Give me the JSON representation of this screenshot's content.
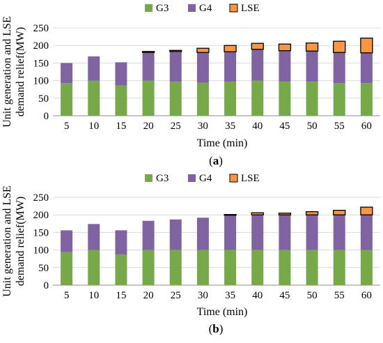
{
  "chart_data": [
    {
      "type": "bar",
      "stacked": true,
      "panel_label": "(a)",
      "panel_letter": "a",
      "xlabel": "Time (min)",
      "ylabel_lines": [
        "Unit generation and LSE",
        "demand relief(MW)"
      ],
      "categories": [
        "5",
        "10",
        "15",
        "20",
        "25",
        "30",
        "35",
        "40",
        "45",
        "50",
        "55",
        "60"
      ],
      "ylim": [
        0,
        250
      ],
      "yticks": [
        "0",
        "50",
        "100",
        "150",
        "200",
        "250"
      ],
      "legend_position": "top-center",
      "series": [
        {
          "name": "G3",
          "color": "#77a84a",
          "values": [
            93,
            100,
            86,
            100,
            97,
            94,
            97,
            100,
            97,
            97,
            93,
            93
          ]
        },
        {
          "name": "G4",
          "color": "#8064a2",
          "values": [
            57,
            69,
            66,
            80,
            86,
            86,
            85,
            89,
            88,
            87,
            87,
            86
          ]
        },
        {
          "name": "LSE",
          "color": "#f79646",
          "values": [
            0,
            0,
            0,
            3,
            3,
            12,
            18,
            17,
            19,
            23,
            32,
            42
          ]
        }
      ]
    },
    {
      "type": "bar",
      "stacked": true,
      "panel_label": "(b)",
      "panel_letter": "b",
      "xlabel": "Time (min)",
      "ylabel_lines": [
        "Unit generation and LSE",
        "demand relief(MW)"
      ],
      "categories": [
        "5",
        "10",
        "15",
        "20",
        "25",
        "30",
        "35",
        "40",
        "45",
        "50",
        "55",
        "60"
      ],
      "ylim": [
        0,
        250
      ],
      "yticks": [
        "0",
        "50",
        "100",
        "150",
        "200",
        "250"
      ],
      "legend_position": "top-center",
      "series": [
        {
          "name": "G3",
          "color": "#77a84a",
          "values": [
            94,
            100,
            87,
            100,
            100,
            100,
            100,
            100,
            100,
            100,
            100,
            100
          ]
        },
        {
          "name": "G4",
          "color": "#8064a2",
          "values": [
            62,
            74,
            69,
            83,
            87,
            92,
            99,
            100,
            100,
            100,
            100,
            100
          ]
        },
        {
          "name": "LSE",
          "color": "#f79646",
          "values": [
            0,
            0,
            0,
            0,
            0,
            0,
            2,
            6,
            5,
            9,
            13,
            22
          ]
        }
      ]
    }
  ]
}
